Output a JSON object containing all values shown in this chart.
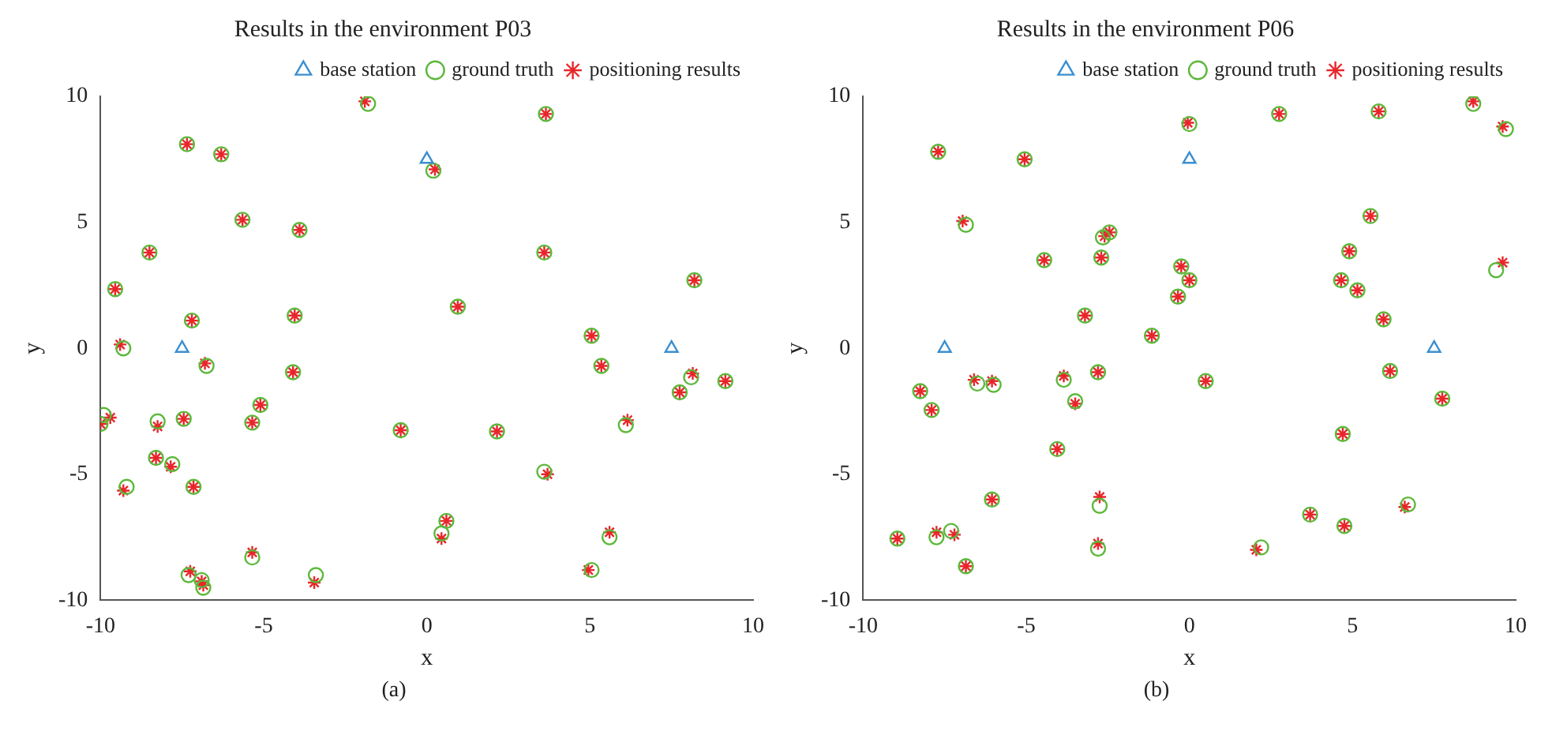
{
  "chart_data": [
    {
      "type": "scatter",
      "title": "Results in the environment P03",
      "xlabel": "x",
      "ylabel": "y",
      "xlim": [
        -10,
        10
      ],
      "ylim": [
        -10,
        10
      ],
      "xticks": [
        -10,
        -5,
        0,
        5,
        10
      ],
      "yticks": [
        -10,
        -5,
        0,
        5,
        10
      ],
      "grid": false,
      "legend": "top right",
      "annotations": [
        "(a)"
      ],
      "series": [
        {
          "name": "base station",
          "color": "#3a8fd0",
          "marker": "triangle",
          "x": [
            0,
            -7.5,
            7.5
          ],
          "values": [
            7.5,
            0,
            0
          ]
        },
        {
          "name": "ground truth",
          "color": "#5cb83a",
          "marker": "circle",
          "x": [
            -1.8,
            -7.35,
            -6.3,
            -5.65,
            -3.9,
            -8.5,
            -9.55,
            -7.2,
            -4.05,
            -9.3,
            -6.75,
            -4.1,
            -5.1,
            -9.9,
            -10,
            -8.25,
            -7.45,
            -5.35,
            -8.3,
            -7.8,
            -7.15,
            -9.2,
            -5.35,
            -7.3,
            -6.9,
            -6.85,
            -3.4,
            -0.8,
            0.2,
            3.65,
            3.6,
            8.2,
            0.95,
            5.05,
            5.35,
            8.1,
            9.15,
            7.75,
            6.1,
            2.15,
            3.6,
            0.6,
            0.45,
            5.6,
            5.05
          ],
          "values": [
            9.7,
            8.1,
            7.7,
            5.1,
            4.7,
            3.8,
            2.35,
            1.1,
            1.3,
            0,
            -0.7,
            -0.95,
            -2.25,
            -2.65,
            -3,
            -2.9,
            -2.8,
            -2.95,
            -4.35,
            -4.6,
            -5.5,
            -5.5,
            -8.3,
            -9.0,
            -9.2,
            -9.5,
            -9.0,
            -3.25,
            7.05,
            9.3,
            3.8,
            2.7,
            1.65,
            0.5,
            -0.7,
            -1.15,
            -1.3,
            -1.75,
            -3.05,
            -3.3,
            -4.9,
            -6.85,
            -7.35,
            -7.5,
            -8.8
          ]
        },
        {
          "name": "positioning results",
          "color": "#e8262a",
          "marker": "cross",
          "x": [
            -1.9,
            -7.35,
            -6.3,
            -5.65,
            -3.9,
            -8.5,
            -9.55,
            -7.2,
            -4.05,
            -9.4,
            -6.8,
            -4.1,
            -5.1,
            -9.7,
            -10,
            -8.25,
            -7.45,
            -5.35,
            -8.3,
            -7.85,
            -7.15,
            -9.3,
            -5.35,
            -7.25,
            -6.9,
            -6.85,
            -3.45,
            -0.8,
            0.25,
            3.65,
            3.6,
            8.2,
            0.95,
            5.05,
            5.35,
            8.15,
            9.15,
            7.75,
            6.15,
            2.15,
            3.7,
            0.6,
            0.45,
            5.6,
            4.95
          ],
          "values": [
            9.8,
            8.1,
            7.7,
            5.1,
            4.7,
            3.8,
            2.35,
            1.1,
            1.3,
            0.15,
            -0.6,
            -0.95,
            -2.25,
            -2.75,
            -3,
            -3.1,
            -2.8,
            -2.95,
            -4.35,
            -4.7,
            -5.5,
            -5.65,
            -8.1,
            -8.85,
            -9.25,
            -9.4,
            -9.3,
            -3.25,
            7.1,
            9.3,
            3.8,
            2.7,
            1.65,
            0.5,
            -0.7,
            -1.0,
            -1.3,
            -1.75,
            -2.85,
            -3.3,
            -5.0,
            -6.85,
            -7.55,
            -7.3,
            -8.8
          ]
        }
      ]
    },
    {
      "type": "scatter",
      "title": "Results in the environment P06",
      "xlabel": "x",
      "ylabel": "y",
      "xlim": [
        -10,
        10
      ],
      "ylim": [
        -10,
        10
      ],
      "xticks": [
        -10,
        -5,
        0,
        5,
        10
      ],
      "yticks": [
        -10,
        -5,
        0,
        5,
        10
      ],
      "grid": false,
      "legend": "top right",
      "annotations": [
        "(b)"
      ],
      "series": [
        {
          "name": "base station",
          "color": "#3a8fd0",
          "marker": "triangle",
          "x": [
            0,
            -7.5,
            7.5
          ],
          "values": [
            7.5,
            0,
            0
          ]
        },
        {
          "name": "ground truth",
          "color": "#5cb83a",
          "marker": "circle",
          "x": [
            0,
            -7.7,
            -5.05,
            -6.85,
            -2.65,
            -2.45,
            -4.45,
            -2.7,
            -0.25,
            0,
            -0.35,
            -3.2,
            -1.15,
            0.5,
            -6.5,
            -6.0,
            -3.85,
            -2.8,
            -3.5,
            -8.25,
            -7.9,
            -4.05,
            -6.05,
            -2.75,
            -8.95,
            -7.75,
            -7.3,
            -6.85,
            -2.8,
            2.75,
            5.8,
            8.7,
            9.7,
            5.55,
            4.9,
            4.65,
            5.15,
            9.4,
            5.95,
            6.15,
            7.75,
            4.7,
            6.7,
            3.7,
            4.75,
            2.2
          ],
          "values": [
            8.9,
            7.8,
            7.5,
            4.9,
            4.4,
            4.6,
            3.5,
            3.6,
            3.25,
            2.7,
            2.05,
            1.3,
            0.5,
            -1.3,
            -1.4,
            -1.45,
            -1.25,
            -0.95,
            -2.1,
            -1.7,
            -2.45,
            -4.0,
            -6.0,
            -6.25,
            -7.55,
            -7.5,
            -7.25,
            -8.65,
            -7.95,
            9.3,
            9.4,
            9.7,
            8.7,
            5.25,
            3.85,
            2.7,
            2.3,
            3.1,
            1.15,
            -0.9,
            -2.0,
            -3.4,
            -6.2,
            -6.6,
            -7.05,
            -7.9
          ]
        },
        {
          "name": "positioning results",
          "color": "#e8262a",
          "marker": "cross",
          "x": [
            -0.05,
            -7.7,
            -5.05,
            -6.95,
            -2.6,
            -2.45,
            -4.45,
            -2.7,
            -0.25,
            0,
            -0.35,
            -3.2,
            -1.15,
            0.5,
            -6.6,
            -6.05,
            -3.85,
            -2.8,
            -3.5,
            -8.25,
            -7.9,
            -4.05,
            -6.05,
            -2.75,
            -8.95,
            -7.75,
            -7.2,
            -6.85,
            -2.8,
            2.75,
            5.8,
            8.7,
            9.6,
            5.55,
            4.9,
            4.65,
            5.15,
            9.6,
            5.95,
            6.15,
            7.75,
            4.7,
            6.6,
            3.7,
            4.75,
            2.05
          ],
          "values": [
            8.95,
            7.8,
            7.5,
            5.05,
            4.45,
            4.6,
            3.5,
            3.6,
            3.25,
            2.7,
            2.05,
            1.3,
            0.5,
            -1.3,
            -1.25,
            -1.3,
            -1.1,
            -0.95,
            -2.2,
            -1.7,
            -2.45,
            -4.0,
            -6.0,
            -5.9,
            -7.55,
            -7.3,
            -7.4,
            -8.65,
            -7.75,
            9.3,
            9.4,
            9.8,
            8.8,
            5.25,
            3.85,
            2.7,
            2.3,
            3.4,
            1.15,
            -0.9,
            -2.0,
            -3.4,
            -6.3,
            -6.6,
            -7.05,
            -8.0
          ]
        }
      ]
    }
  ]
}
